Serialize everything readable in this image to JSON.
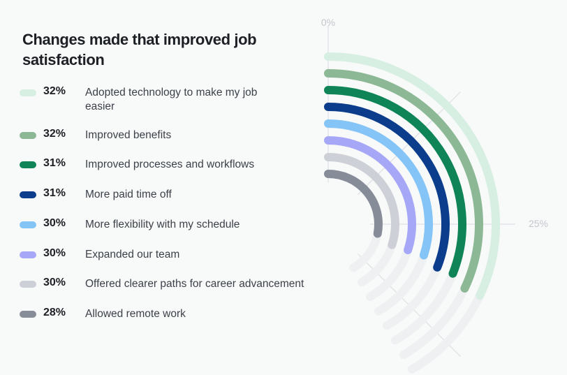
{
  "chart_data": {
    "type": "radial-bar",
    "title": "Changes made that improved job satisfaction",
    "axis": {
      "min": 0,
      "max": 50,
      "tick_labels": [
        "0%",
        "25%"
      ]
    },
    "series": [
      {
        "label": "Adopted technology to make my job easier",
        "value": 32,
        "value_label": "32%",
        "color": "#d7efe3"
      },
      {
        "label": "Improved benefits",
        "value": 32,
        "value_label": "32%",
        "color": "#8cb896"
      },
      {
        "label": "Improved processes and workflows",
        "value": 31,
        "value_label": "31%",
        "color": "#0f8457"
      },
      {
        "label": "More paid time off",
        "value": 31,
        "value_label": "31%",
        "color": "#0b3d8c"
      },
      {
        "label": "More flexibility with my schedule",
        "value": 30,
        "value_label": "30%",
        "color": "#84c4f7"
      },
      {
        "label": "Expanded our team",
        "value": 30,
        "value_label": "30%",
        "color": "#a6a8f7"
      },
      {
        "label": "Offered clearer paths for career advancement",
        "value": 30,
        "value_label": "30%",
        "color": "#cdd0d6"
      },
      {
        "label": "Allowed remote work",
        "value": 28,
        "value_label": "28%",
        "color": "#868d99"
      }
    ]
  },
  "colors": {
    "track": "#eef0f2",
    "gridline": "#e1e4e7",
    "tick_text": "#c3c7cc"
  }
}
